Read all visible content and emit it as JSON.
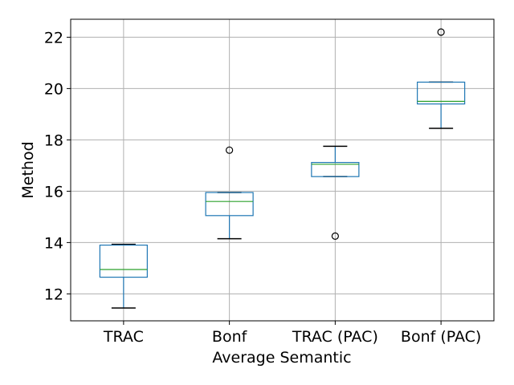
{
  "chart_data": {
    "type": "boxplot",
    "title": "",
    "xlabel": "Average Semantic",
    "ylabel": "Method",
    "ylim": [
      10.95,
      22.7
    ],
    "yticks": [
      12,
      14,
      16,
      18,
      20,
      22
    ],
    "grid": true,
    "categories": [
      "TRAC",
      "Bonf",
      "TRAC (PAC)",
      "Bonf (PAC)"
    ],
    "boxes": [
      {
        "whisker_low": 11.45,
        "q1": 12.65,
        "median": 12.95,
        "q3": 13.9,
        "whisker_high": 13.93,
        "outliers": []
      },
      {
        "whisker_low": 14.15,
        "q1": 15.05,
        "median": 15.6,
        "q3": 15.95,
        "whisker_high": 15.95,
        "outliers": [
          17.6
        ]
      },
      {
        "whisker_low": 16.57,
        "q1": 16.57,
        "median": 17.05,
        "q3": 17.12,
        "whisker_high": 17.75,
        "outliers": [
          14.25
        ]
      },
      {
        "whisker_low": 18.45,
        "q1": 19.4,
        "median": 19.5,
        "q3": 20.25,
        "whisker_high": 20.25,
        "outliers": [
          22.2
        ]
      }
    ],
    "colors": {
      "box": "#1f77b4",
      "median": "#2ca02c",
      "whisker_cap": "#000000",
      "grid": "#b0b0b0",
      "axes": "#000000"
    }
  }
}
